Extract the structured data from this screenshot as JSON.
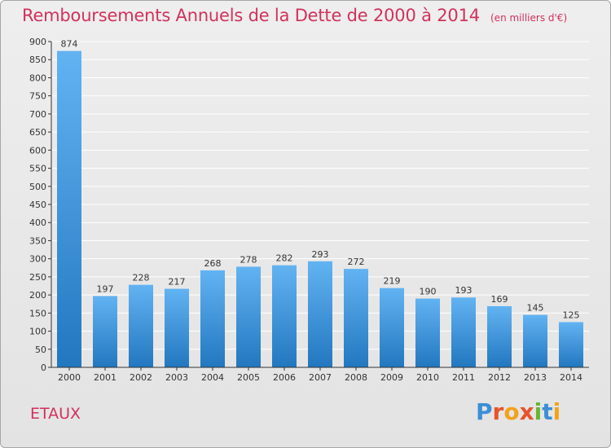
{
  "commune": "ETAUX",
  "brand": {
    "text": "Proxiti",
    "letters": [
      "P",
      "r",
      "o",
      "x",
      "i",
      "t",
      "i"
    ],
    "letter_colors": [
      "#3b8fd6",
      "#e8532c",
      "#f2a21b",
      "#e8532c",
      "#6bb52f",
      "#3b8fd6",
      "#f2a21b"
    ]
  },
  "colors": {
    "accent": "#d1325c",
    "bar_top": "#62b3f2",
    "bar_bottom": "#2277bf",
    "grid": "#ffffff",
    "axis": "#333333"
  },
  "chart_data": {
    "type": "bar",
    "title": "Remboursements Annuels de la Dette de 2000 à 2014",
    "subtitle": "(en milliers d'€)",
    "categories": [
      "2000",
      "2001",
      "2002",
      "2003",
      "2004",
      "2005",
      "2006",
      "2007",
      "2008",
      "2009",
      "2010",
      "2011",
      "2012",
      "2013",
      "2014"
    ],
    "values": [
      874,
      197,
      228,
      217,
      268,
      278,
      282,
      293,
      272,
      219,
      190,
      193,
      169,
      145,
      125
    ],
    "ylim": [
      0,
      900
    ],
    "yticks": [
      0,
      50,
      100,
      150,
      200,
      250,
      300,
      350,
      400,
      450,
      500,
      550,
      600,
      650,
      700,
      750,
      800,
      850,
      900
    ],
    "grid": true,
    "legend": "none"
  }
}
